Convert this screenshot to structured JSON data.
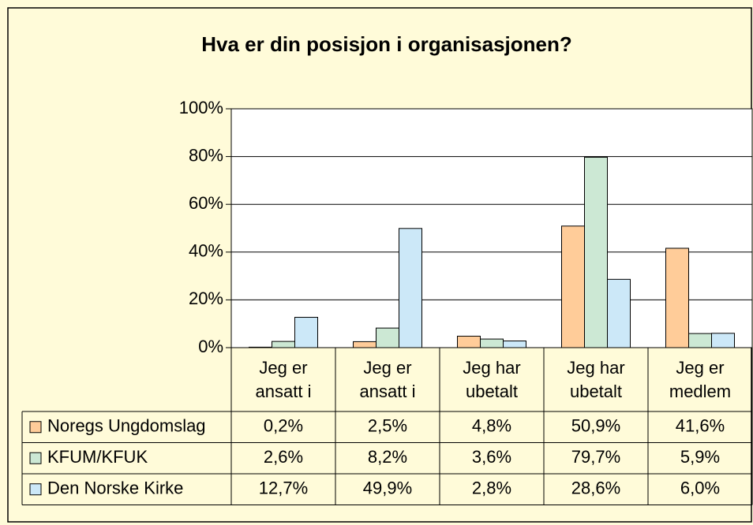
{
  "chart_data": {
    "type": "bar",
    "title": "Hva er din posisjon i organisasjonen?",
    "categories": [
      "Jeg er ansatt i",
      "Jeg er ansatt i",
      "Jeg har ubetalt",
      "Jeg har ubetalt",
      "Jeg er medlem"
    ],
    "series": [
      {
        "name": "Noregs Ungdomslag",
        "color": "#ffcc99",
        "values": [
          0.2,
          2.5,
          4.8,
          50.9,
          41.6
        ],
        "value_labels": [
          "0,2%",
          "2,5%",
          "4,8%",
          "50,9%",
          "41,6%"
        ]
      },
      {
        "name": "KFUM/KFUK",
        "color": "#cce8d4",
        "values": [
          2.6,
          8.2,
          3.6,
          79.7,
          5.9
        ],
        "value_labels": [
          "2,6%",
          "8,2%",
          "3,6%",
          "79,7%",
          "5,9%"
        ]
      },
      {
        "name": "Den Norske Kirke",
        "color": "#cce8f8",
        "values": [
          12.7,
          49.9,
          2.8,
          28.6,
          6.0
        ],
        "value_labels": [
          "12,7%",
          "49,9%",
          "2,8%",
          "28,6%",
          "6,0%"
        ]
      }
    ],
    "ylim": [
      0,
      100
    ],
    "yticks": [
      {
        "value": 0,
        "label": "0%"
      },
      {
        "value": 20,
        "label": "20%"
      },
      {
        "value": 40,
        "label": "40%"
      },
      {
        "value": 60,
        "label": "60%"
      },
      {
        "value": 80,
        "label": "80%"
      },
      {
        "value": 100,
        "label": "100%"
      }
    ],
    "grid": true
  }
}
